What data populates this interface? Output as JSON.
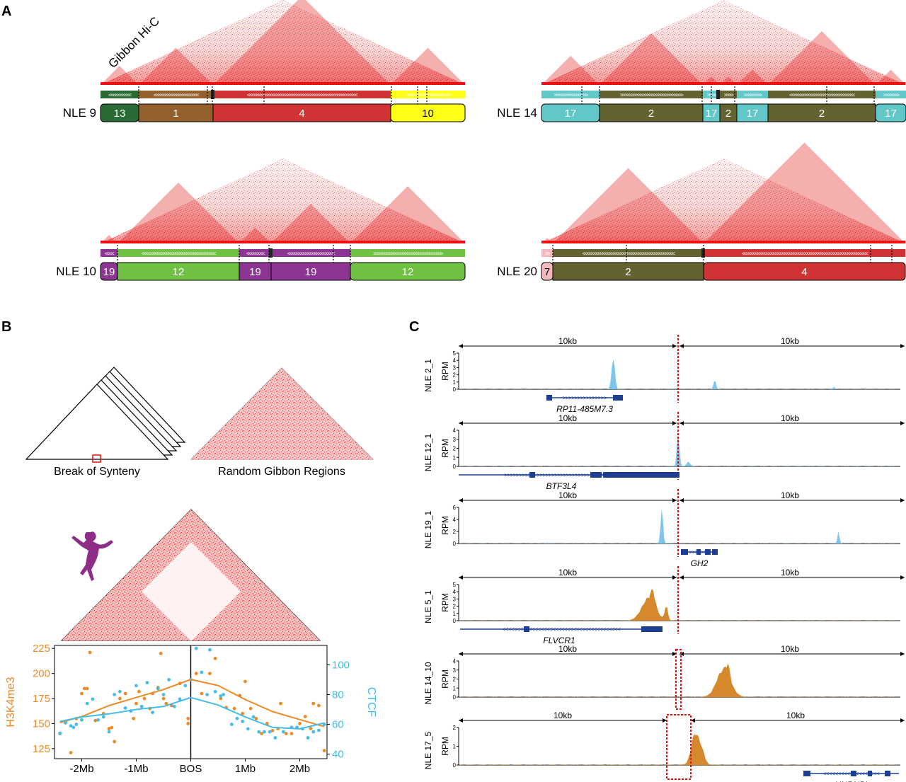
{
  "panel_labels": {
    "a": "A",
    "b": "B",
    "c": "C"
  },
  "panel_a": {
    "hic_label": "Gibbon Hi-C",
    "colors": {
      "1": "#94602b",
      "2": "#636331",
      "4": "#d03333",
      "7": "#f5b8bc",
      "10": "#ffff18",
      "12": "#70c044",
      "13": "#2a6a34",
      "17": "#62c7c8",
      "19": "#8d3592",
      "heat": "#ee1111"
    },
    "tracks": [
      {
        "label": "NLE 9",
        "segments": [
          {
            "chr": "13"
          },
          {
            "chr": "1"
          },
          {
            "chr": "4"
          },
          {
            "chr": "10"
          }
        ]
      },
      {
        "label": "NLE 14",
        "segments": [
          {
            "chr": "17"
          },
          {
            "chr": "2"
          },
          {
            "chr": "17"
          },
          {
            "chr": "2"
          },
          {
            "chr": "17"
          },
          {
            "chr": "2"
          },
          {
            "chr": "17"
          }
        ]
      },
      {
        "label": "NLE 10",
        "segments": [
          {
            "chr": "19"
          },
          {
            "chr": "12"
          },
          {
            "chr": "19"
          },
          {
            "chr": "19"
          },
          {
            "chr": "12"
          }
        ]
      },
      {
        "label": "NLE 20",
        "segments": [
          {
            "chr": "7"
          },
          {
            "chr": "2"
          },
          {
            "chr": "4"
          }
        ]
      }
    ]
  },
  "panel_b": {
    "break_label": "Break of Synteny",
    "random_label": "Random Gibbon Regions",
    "chart_data": {
      "type": "scatter",
      "x_ticks": [
        "-2Mb",
        "-1Mb",
        "BOS",
        "1Mb",
        "2Mb"
      ],
      "xlabel": "",
      "ylabel_left": "H3K4me3",
      "ylabel_right": "CTCF",
      "y_left_ticks": [
        125,
        150,
        175,
        200,
        225
      ],
      "y_right_ticks": [
        40,
        60,
        80,
        100
      ],
      "ylim_left": [
        115,
        228
      ],
      "ylim_right": [
        37,
        113
      ],
      "xlim": [
        -2.5,
        2.5
      ],
      "colors": {
        "h3k4me3": "#ee8a25",
        "ctcf": "#45bde6"
      },
      "series": [
        {
          "key": "h3k4me3",
          "axis": "left",
          "points": [
            [
              -2.4,
              140
            ],
            [
              -2.3,
              152
            ],
            [
              -2.2,
              121
            ],
            [
              -2.1,
              155
            ],
            [
              -2.0,
              180
            ],
            [
              -1.95,
              185
            ],
            [
              -1.9,
              185
            ],
            [
              -1.85,
              221
            ],
            [
              -1.75,
              153
            ],
            [
              -1.6,
              160
            ],
            [
              -1.5,
              145
            ],
            [
              -1.45,
              146
            ],
            [
              -1.4,
              132
            ],
            [
              -1.3,
              175
            ],
            [
              -1.2,
              180
            ],
            [
              -1.05,
              155
            ],
            [
              -1.0,
              170
            ],
            [
              -0.95,
              182
            ],
            [
              -0.85,
              175
            ],
            [
              -0.75,
              165
            ],
            [
              -0.7,
              180
            ],
            [
              -0.6,
              186
            ],
            [
              -0.55,
              220
            ],
            [
              -0.5,
              175
            ],
            [
              -0.45,
              170
            ],
            [
              -0.35,
              168
            ],
            [
              -0.2,
              190
            ],
            [
              -0.05,
              155
            ],
            [
              -0.05,
              150
            ],
            [
              0.1,
              200
            ],
            [
              0.2,
              180
            ],
            [
              0.35,
              200
            ],
            [
              0.45,
              215
            ],
            [
              0.55,
              175
            ],
            [
              0.65,
              166
            ],
            [
              0.8,
              165
            ],
            [
              0.9,
              178
            ],
            [
              0.95,
              160
            ],
            [
              1.0,
              192
            ],
            [
              1.1,
              165
            ],
            [
              1.2,
              155
            ],
            [
              1.3,
              140
            ],
            [
              1.4,
              150
            ],
            [
              1.5,
              143
            ],
            [
              1.6,
              145
            ],
            [
              1.65,
              170
            ],
            [
              1.75,
              140
            ],
            [
              1.85,
              140
            ],
            [
              2.0,
              150
            ],
            [
              2.1,
              157
            ],
            [
              2.2,
              145
            ],
            [
              2.25,
              170
            ],
            [
              2.35,
              168
            ],
            [
              2.45,
              123
            ]
          ]
        },
        {
          "key": "ctcf",
          "axis": "right",
          "points": [
            [
              -2.4,
              54
            ],
            [
              -2.3,
              61
            ],
            [
              -2.2,
              59
            ],
            [
              -2.15,
              58
            ],
            [
              -2.1,
              60
            ],
            [
              -2.0,
              63
            ],
            [
              -1.9,
              74
            ],
            [
              -1.8,
              77
            ],
            [
              -1.7,
              63
            ],
            [
              -1.6,
              65
            ],
            [
              -1.5,
              55
            ],
            [
              -1.4,
              80
            ],
            [
              -1.3,
              82
            ],
            [
              -1.2,
              71
            ],
            [
              -1.1,
              69
            ],
            [
              -1.0,
              86
            ],
            [
              -0.9,
              72
            ],
            [
              -0.8,
              88
            ],
            [
              -0.7,
              68
            ],
            [
              -0.6,
              84
            ],
            [
              -0.5,
              80
            ],
            [
              -0.4,
              90
            ],
            [
              -0.3,
              72
            ],
            [
              -0.2,
              77
            ],
            [
              -0.1,
              86
            ],
            [
              0.0,
              90
            ],
            [
              0.1,
              111
            ],
            [
              0.2,
              95
            ],
            [
              0.3,
              80
            ],
            [
              0.35,
              110
            ],
            [
              0.45,
              82
            ],
            [
              0.55,
              79
            ],
            [
              0.6,
              80
            ],
            [
              0.75,
              60
            ],
            [
              0.85,
              64
            ],
            [
              0.95,
              62
            ],
            [
              1.05,
              57
            ],
            [
              1.15,
              65
            ],
            [
              1.25,
              55
            ],
            [
              1.35,
              55
            ],
            [
              1.45,
              55
            ],
            [
              1.55,
              51
            ],
            [
              1.7,
              55
            ],
            [
              1.85,
              58
            ],
            [
              1.95,
              58
            ],
            [
              2.05,
              57
            ],
            [
              2.15,
              51
            ],
            [
              2.25,
              55
            ],
            [
              2.35,
              56
            ],
            [
              2.45,
              60
            ]
          ]
        }
      ],
      "fits": [
        {
          "key": "h3k4me3",
          "axis": "left",
          "points": [
            [
              -2.4,
              151
            ],
            [
              -2.0,
              157
            ],
            [
              -1.5,
              168
            ],
            [
              -1.0,
              176
            ],
            [
              -0.5,
              184
            ],
            [
              0.0,
              194
            ],
            [
              0.5,
              188
            ],
            [
              1.0,
              174
            ],
            [
              1.5,
              162
            ],
            [
              2.0,
              154
            ],
            [
              2.45,
              147
            ]
          ]
        },
        {
          "key": "ctcf",
          "axis": "right",
          "points": [
            [
              -2.4,
              62
            ],
            [
              -2.0,
              65
            ],
            [
              -1.5,
              67
            ],
            [
              -1.0,
              70
            ],
            [
              -0.5,
              72
            ],
            [
              0.0,
              78
            ],
            [
              0.5,
              73
            ],
            [
              1.0,
              65
            ],
            [
              1.5,
              58
            ],
            [
              2.0,
              57
            ],
            [
              2.45,
              61
            ]
          ]
        }
      ]
    }
  },
  "panel_c": {
    "colors": {
      "blue": "#7cc6eb",
      "orange": "#d6882c",
      "gene": "#1c3f94",
      "break": "#dd1111"
    },
    "tracks": [
      {
        "label": "NLE 2_1",
        "ylabel": "RPM",
        "yticks": [
          "5",
          "4",
          "3",
          "2",
          "1",
          "0"
        ],
        "ymax": 5,
        "kb_left": "10kb",
        "kb_right": "10kb",
        "color": "blue",
        "gene": "RP11-485M7.3",
        "peaks": [
          [
            0.35,
            0.005,
            4.8
          ],
          [
            0.58,
            0.004,
            1.3
          ],
          [
            0.85,
            0.003,
            0.35
          ]
        ]
      },
      {
        "label": "NLE 12_1",
        "ylabel": "RPM",
        "yticks": [
          "4",
          "3",
          "2",
          "1",
          "0"
        ],
        "ymax": 4,
        "kb_left": "10kb",
        "kb_right": "10kb",
        "color": "blue",
        "gene": "BTF3L4",
        "peaks": [
          [
            0.497,
            0.004,
            3.8
          ],
          [
            0.52,
            0.006,
            0.5
          ]
        ]
      },
      {
        "label": "NLE 19_1",
        "ylabel": "RPM",
        "yticks": [
          "6",
          "4",
          "2",
          "0"
        ],
        "ymax": 7,
        "kb_left": "10kb",
        "kb_right": "10kb",
        "color": "blue",
        "gene": "GH2",
        "peaks": [
          [
            0.46,
            0.004,
            6.9
          ],
          [
            0.86,
            0.003,
            2.5
          ],
          [
            0.2,
            0.002,
            0.3
          ]
        ]
      },
      {
        "label": "NLE 5_1",
        "ylabel": "RPM",
        "yticks": [
          "5",
          "4",
          "3",
          "2",
          "1",
          "0"
        ],
        "ymax": 5,
        "kb_left": "10kb",
        "kb_right": "10kb",
        "color": "orange",
        "gene": "FLVCR1",
        "peaks": [
          [
            0.43,
            0.022,
            3.2
          ],
          [
            0.44,
            0.007,
            1.8
          ],
          [
            0.47,
            0.005,
            2.0
          ]
        ]
      },
      {
        "label": "NLE 14_10",
        "ylabel": "RPM",
        "yticks": [
          "4",
          "3",
          "2",
          "1",
          "0"
        ],
        "ymax": 4,
        "kb_left": "10kb",
        "kb_right": "10kb",
        "color": "orange",
        "gene": "",
        "peaks": [
          [
            0.6,
            0.022,
            3.2
          ],
          [
            0.61,
            0.006,
            1.2
          ]
        ]
      },
      {
        "label": "NLE 17_5",
        "ylabel": "RPM",
        "yticks": [
          "2",
          "1",
          "0"
        ],
        "ymax": 2.5,
        "kb_left": "10kb",
        "kb_right": "10kb",
        "color": "orange",
        "gene": "HNRNPL",
        "peaks": [
          [
            0.535,
            0.012,
            2.1
          ],
          [
            0.55,
            0.01,
            0.9
          ]
        ]
      }
    ]
  }
}
